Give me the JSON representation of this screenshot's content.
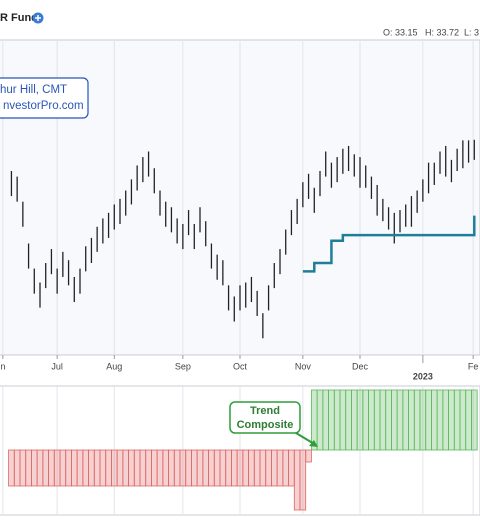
{
  "header": {
    "title": "R Fund",
    "ohlc": [
      "O: 33.15",
      "H: 33.72",
      "L: 3"
    ]
  },
  "chart_data": [
    {
      "type": "ohlc",
      "annotation": [
        "hur Hill, CMT",
        "nvestorPro.com"
      ],
      "xlim": [
        -2,
        82
      ],
      "ylim": [
        26,
        37.3
      ],
      "xticks": [
        {
          "value": -1.5,
          "label": "n"
        },
        {
          "value": 8,
          "label": "Jul"
        },
        {
          "value": 18,
          "label": "Aug"
        },
        {
          "value": 30,
          "label": "Sep"
        },
        {
          "value": 40,
          "label": "Oct"
        },
        {
          "value": 51,
          "label": "Nov"
        },
        {
          "value": 61,
          "label": "Dec"
        },
        {
          "value": 80.8,
          "label": "Fe"
        }
      ],
      "year_ticks": [
        {
          "value": 72,
          "label": "2023"
        }
      ],
      "grid": true,
      "color": "#222222",
      "high": [
        32.6,
        32.4,
        31.5,
        30.0,
        29.1,
        28.6,
        29.3,
        29.8,
        29.1,
        29.7,
        29.4,
        28.8,
        29.1,
        29.9,
        30.2,
        30.6,
        30.9,
        31.1,
        31.4,
        31.6,
        31.9,
        32.3,
        32.8,
        33.1,
        33.3,
        32.7,
        31.9,
        31.5,
        31.3,
        30.9,
        30.7,
        31.2,
        30.7,
        31.3,
        30.8,
        30.0,
        29.6,
        29.4,
        28.5,
        28.1,
        28.5,
        28.6,
        28.8,
        28.3,
        27.5,
        28.5,
        29.3,
        29.8,
        30.5,
        31.2,
        31.6,
        32.2,
        32.5,
        32.0,
        32.6,
        33.3,
        32.9,
        33.1,
        33.4,
        33.5,
        33.2,
        33.1,
        32.8,
        32.4,
        32.1,
        31.6,
        31.3,
        31.1,
        31.2,
        31.4,
        31.7,
        31.9,
        32.3,
        32.9,
        32.9,
        33.3,
        33.5,
        33.0,
        33.4,
        33.7,
        33.7,
        33.72
      ],
      "low": [
        31.7,
        31.5,
        30.6,
        29.1,
        28.2,
        27.7,
        28.4,
        28.9,
        28.2,
        28.8,
        28.5,
        27.9,
        28.2,
        29.0,
        29.3,
        29.7,
        30.0,
        30.2,
        30.5,
        30.7,
        31.0,
        31.4,
        31.9,
        32.2,
        32.4,
        31.8,
        31.0,
        30.6,
        30.4,
        30.0,
        29.8,
        30.3,
        29.8,
        30.4,
        29.9,
        29.1,
        28.7,
        28.5,
        27.6,
        27.2,
        27.6,
        27.7,
        27.9,
        27.4,
        26.6,
        27.6,
        28.4,
        28.9,
        29.6,
        30.3,
        30.7,
        31.3,
        31.6,
        31.1,
        31.7,
        32.4,
        32.0,
        32.2,
        32.5,
        32.6,
        32.4,
        32.0,
        32.0,
        31.6,
        31.0,
        30.8,
        30.5,
        30.0,
        30.4,
        30.6,
        30.6,
        31.1,
        31.5,
        31.8,
        32.1,
        32.5,
        32.4,
        32.2,
        32.6,
        32.7,
        32.9,
        33.0
      ],
      "line": {
        "color": "#1f7f9a",
        "values": [
          null,
          null,
          null,
          null,
          null,
          null,
          null,
          null,
          null,
          null,
          null,
          null,
          null,
          null,
          null,
          null,
          null,
          null,
          null,
          null,
          null,
          null,
          null,
          null,
          null,
          null,
          null,
          null,
          null,
          null,
          null,
          null,
          null,
          null,
          null,
          null,
          null,
          null,
          null,
          null,
          null,
          null,
          null,
          null,
          null,
          null,
          null,
          null,
          null,
          null,
          null,
          29.0,
          29.0,
          29.3,
          29.3,
          29.3,
          30.1,
          30.1,
          30.3,
          30.3,
          30.3,
          30.3,
          30.3,
          30.3,
          30.3,
          30.3,
          30.3,
          30.3,
          30.3,
          30.3,
          30.3,
          30.3,
          30.3,
          30.3,
          30.3,
          30.3,
          30.3,
          30.3,
          30.3,
          30.3,
          30.3,
          31.0
        ]
      }
    },
    {
      "type": "bar",
      "annotation": [
        "Trend",
        "Composite"
      ],
      "xlim": [
        -2,
        82
      ],
      "ylim": [
        -5,
        5
      ],
      "positive_color": "#5cb85c",
      "negative_color": "#e06666",
      "values": [
        -3,
        -3,
        -3,
        -3,
        -3,
        -3,
        -3,
        -3,
        -3,
        -3,
        -3,
        -3,
        -3,
        -3,
        -3,
        -3,
        -3,
        -3,
        -3,
        -3,
        -3,
        -3,
        -3,
        -3,
        -3,
        -3,
        -3,
        -3,
        -3,
        -3,
        -3,
        -3,
        -3,
        -3,
        -3,
        -3,
        -3,
        -3,
        -3,
        -3,
        -3,
        -3,
        -3,
        -3,
        -3,
        -3,
        -3,
        -3,
        -3,
        -3,
        -5,
        -5,
        -1,
        5,
        5,
        5,
        5,
        5,
        5,
        5,
        5,
        5,
        5,
        5,
        5,
        5,
        5,
        5,
        5,
        5,
        5,
        5,
        5,
        5,
        5,
        5,
        5,
        5,
        5,
        5,
        5,
        5
      ]
    }
  ]
}
